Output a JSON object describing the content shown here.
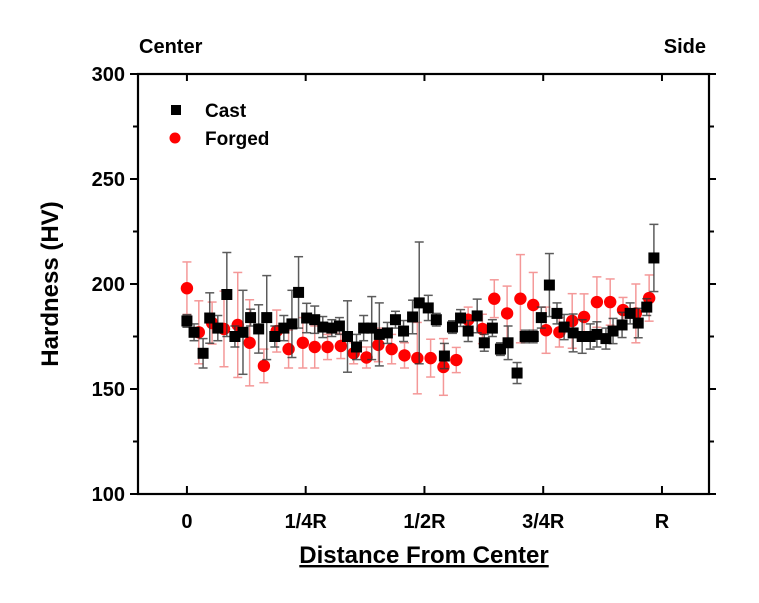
{
  "chart_data": {
    "type": "scatter",
    "title": "",
    "xlabel": "Distance From Center",
    "ylabel": "Hardness (HV)",
    "top_left_label": "Center",
    "top_right_label": "Side",
    "xlim": [
      -0.103,
      1.099
    ],
    "ylim": [
      100,
      300
    ],
    "x_ticks": [
      {
        "value": 0,
        "label": "0"
      },
      {
        "value": 0.25,
        "label": "1/4R"
      },
      {
        "value": 0.5,
        "label": "1/2R"
      },
      {
        "value": 0.75,
        "label": "3/4R"
      },
      {
        "value": 1.0,
        "label": "R"
      }
    ],
    "y_ticks": [
      {
        "value": 100,
        "label": "100"
      },
      {
        "value": 150,
        "label": "150"
      },
      {
        "value": 200,
        "label": "200"
      },
      {
        "value": 250,
        "label": "250"
      },
      {
        "value": 300,
        "label": "300"
      }
    ],
    "y_minor_ticks": [
      125,
      175,
      225,
      275
    ],
    "grid": false,
    "legend_position": "top-left",
    "series": [
      {
        "name": "Cast",
        "marker": "square",
        "color": "#000000",
        "errcolor": "#333333",
        "x": [
          0.0,
          0.015,
          0.034,
          0.048,
          0.065,
          0.084,
          0.101,
          0.118,
          0.134,
          0.151,
          0.168,
          0.185,
          0.204,
          0.221,
          0.235,
          0.252,
          0.269,
          0.286,
          0.305,
          0.321,
          0.338,
          0.357,
          0.372,
          0.389,
          0.405,
          0.422,
          0.439,
          0.456,
          0.475,
          0.489,
          0.508,
          0.525,
          0.542,
          0.559,
          0.576,
          0.592,
          0.611,
          0.626,
          0.643,
          0.66,
          0.676,
          0.695,
          0.712,
          0.729,
          0.746,
          0.763,
          0.779,
          0.794,
          0.813,
          0.832,
          0.849,
          0.863,
          0.882,
          0.897,
          0.916,
          0.933,
          0.95,
          0.968,
          0.983
        ],
        "y": [
          182.4,
          177,
          167,
          183.8,
          179,
          195,
          175,
          177,
          184,
          178.6,
          184,
          175,
          179,
          181,
          196,
          183.8,
          183,
          179.5,
          179,
          180,
          175,
          170,
          179,
          179,
          176,
          176.7,
          183,
          177.6,
          184.3,
          191,
          188.6,
          183,
          165.7,
          179.5,
          183.8,
          177.6,
          184.8,
          172,
          179,
          169,
          172,
          157.6,
          175,
          175,
          184,
          199.5,
          186,
          179.5,
          176.7,
          175,
          175,
          176,
          174,
          177.6,
          180.5,
          186,
          181.4,
          189,
          212.4
        ],
        "err": [
          3,
          4,
          7,
          12,
          6,
          20,
          5,
          20,
          4,
          11.5,
          20,
          5,
          6,
          16,
          17,
          7,
          6.5,
          5,
          4,
          4,
          17,
          6,
          6,
          15,
          15,
          5,
          4,
          5,
          8,
          29,
          6,
          3,
          6,
          3,
          4,
          5,
          8,
          4,
          4,
          3,
          8,
          5,
          3,
          3,
          5,
          15,
          5,
          6,
          9,
          8,
          6,
          6,
          5,
          6,
          6,
          5,
          7,
          4,
          16
        ]
      },
      {
        "name": "Forged",
        "marker": "circle",
        "color": "#ff0000",
        "errcolor": "#ee5555",
        "x": [
          0.0,
          0.025,
          0.053,
          0.078,
          0.107,
          0.132,
          0.162,
          0.189,
          0.214,
          0.244,
          0.269,
          0.296,
          0.324,
          0.351,
          0.378,
          0.403,
          0.431,
          0.458,
          0.485,
          0.513,
          0.54,
          0.567,
          0.592,
          0.622,
          0.647,
          0.674,
          0.702,
          0.729,
          0.756,
          0.784,
          0.811,
          0.836,
          0.863,
          0.891,
          0.918,
          0.945,
          0.973
        ],
        "y": [
          198,
          177,
          181.4,
          178.6,
          180.5,
          172,
          161,
          177.6,
          169,
          172,
          170,
          170,
          170.5,
          167,
          165,
          171,
          169,
          166,
          164.7,
          164.7,
          160.5,
          163.8,
          183,
          178.6,
          193,
          186,
          193,
          190,
          178,
          177,
          182.4,
          184.3,
          191.4,
          191.4,
          187.6,
          186,
          193.3
        ],
        "err": [
          12.5,
          15,
          10,
          18,
          25,
          20.5,
          8,
          10,
          9,
          12,
          10,
          6,
          6,
          5,
          5,
          8,
          7,
          6,
          17,
          9,
          13.5,
          6,
          6,
          7,
          9,
          13,
          21,
          15.5,
          11,
          7,
          13,
          11,
          12,
          11,
          6,
          14,
          11
        ]
      }
    ]
  }
}
